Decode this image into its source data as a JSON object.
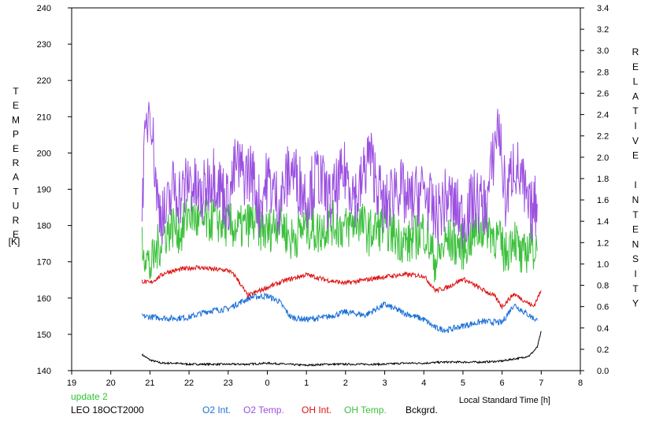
{
  "chart_data": {
    "type": "line",
    "xlabel": "Local Standard Time [h]",
    "ylabel_left": "TEMPERATURE",
    "ylabel_left_unit": "[K]",
    "ylabel_right": "RELATIVE INTENSITY",
    "x_ticks": [
      "19",
      "20",
      "21",
      "22",
      "23",
      "0",
      "1",
      "2",
      "3",
      "4",
      "5",
      "6",
      "7",
      "8"
    ],
    "xlim": [
      19,
      32
    ],
    "ylim_left": [
      140,
      240
    ],
    "y_ticks_left": [
      "140",
      "150",
      "160",
      "170",
      "180",
      "190",
      "200",
      "210",
      "220",
      "230",
      "240"
    ],
    "ylim_right": [
      0.0,
      3.4
    ],
    "y_ticks_right": [
      "0.0",
      "0.2",
      "0.4",
      "0.6",
      "0.8",
      "1.0",
      "1.2",
      "1.4",
      "1.6",
      "1.8",
      "2.0",
      "2.2",
      "2.4",
      "2.6",
      "2.8",
      "3.0",
      "3.2",
      "3.4"
    ],
    "grid": false,
    "series": [
      {
        "name": "O2 Int.",
        "axis": "right",
        "color": "#1a6fd8",
        "x": [
          20.8,
          21.5,
          22.0,
          22.5,
          23.0,
          23.3,
          23.6,
          24.0,
          24.3,
          24.6,
          25.0,
          25.5,
          26.0,
          26.5,
          27.0,
          27.5,
          28.0,
          28.3,
          28.6,
          29.0,
          29.5,
          30.0,
          30.3,
          30.6,
          30.9
        ],
        "y": [
          0.51,
          0.49,
          0.5,
          0.56,
          0.58,
          0.64,
          0.69,
          0.7,
          0.65,
          0.5,
          0.48,
          0.5,
          0.55,
          0.52,
          0.62,
          0.54,
          0.48,
          0.4,
          0.38,
          0.42,
          0.46,
          0.45,
          0.62,
          0.54,
          0.47
        ]
      },
      {
        "name": "O2 Temp.",
        "axis": "left",
        "color": "#9b4fe0",
        "x": [
          20.8,
          20.9,
          21.0,
          21.1,
          21.2,
          21.4,
          21.6,
          21.8,
          22.0,
          22.3,
          22.6,
          23.0,
          23.2,
          23.4,
          23.6,
          23.8,
          24.0,
          24.3,
          24.6,
          25.0,
          25.3,
          25.6,
          26.0,
          26.3,
          26.6,
          27.0,
          27.3,
          27.6,
          28.0,
          28.3,
          28.6,
          29.0,
          29.3,
          29.6,
          29.9,
          30.1,
          30.3,
          30.5,
          30.7,
          30.9
        ],
        "y": [
          189,
          205,
          216,
          200,
          186,
          182,
          191,
          188,
          193,
          187,
          195,
          186,
          197,
          194,
          195,
          185,
          193,
          186,
          196,
          188,
          194,
          186,
          195,
          187,
          200,
          184,
          192,
          186,
          190,
          182,
          188,
          182,
          187,
          185,
          209,
          186,
          198,
          192,
          183,
          186
        ]
      },
      {
        "name": "OH Int.",
        "axis": "right",
        "color": "#dd1010",
        "x": [
          20.8,
          21.0,
          21.4,
          21.8,
          22.2,
          22.6,
          23.0,
          23.2,
          23.5,
          23.8,
          24.0,
          24.5,
          25.0,
          25.5,
          26.0,
          26.5,
          27.0,
          27.5,
          28.0,
          28.3,
          28.6,
          29.0,
          29.4,
          29.8,
          30.0,
          30.3,
          30.6,
          30.8,
          31.0
        ],
        "y": [
          0.84,
          0.82,
          0.92,
          0.95,
          0.97,
          0.95,
          0.94,
          0.88,
          0.7,
          0.75,
          0.78,
          0.85,
          0.9,
          0.85,
          0.82,
          0.85,
          0.88,
          0.9,
          0.89,
          0.75,
          0.78,
          0.86,
          0.78,
          0.7,
          0.6,
          0.72,
          0.65,
          0.6,
          0.75
        ]
      },
      {
        "name": "OH Temp.",
        "axis": "left",
        "color": "#3cc03c",
        "x": [
          20.8,
          21.0,
          21.2,
          21.4,
          21.6,
          21.8,
          22.0,
          22.3,
          22.6,
          23.0,
          23.3,
          23.6,
          24.0,
          24.3,
          24.6,
          25.0,
          25.3,
          25.6,
          26.0,
          26.3,
          26.6,
          27.0,
          27.3,
          27.6,
          28.0,
          28.3,
          28.6,
          29.0,
          29.3,
          29.6,
          29.9,
          30.1,
          30.3,
          30.5,
          30.7,
          30.9
        ],
        "y": [
          176,
          168,
          174,
          178,
          180,
          178,
          184,
          180,
          182,
          180,
          179,
          181,
          178,
          182,
          176,
          180,
          178,
          181,
          179,
          182,
          178,
          180,
          177,
          175,
          179,
          170,
          176,
          174,
          178,
          180,
          176,
          172,
          178,
          170,
          175,
          173
        ]
      },
      {
        "name": "Bckgrd.",
        "axis": "right",
        "color": "#000000",
        "x": [
          20.8,
          21.0,
          21.3,
          21.6,
          22.0,
          22.5,
          23.0,
          23.5,
          24.0,
          24.5,
          25.0,
          25.5,
          26.0,
          26.5,
          27.0,
          27.5,
          28.0,
          28.5,
          29.0,
          29.5,
          30.0,
          30.3,
          30.5,
          30.7,
          30.9,
          31.0
        ],
        "y": [
          0.15,
          0.1,
          0.07,
          0.07,
          0.06,
          0.06,
          0.06,
          0.06,
          0.07,
          0.06,
          0.05,
          0.06,
          0.06,
          0.06,
          0.06,
          0.07,
          0.07,
          0.08,
          0.08,
          0.08,
          0.09,
          0.11,
          0.12,
          0.14,
          0.22,
          0.37
        ]
      }
    ]
  },
  "footer": {
    "update_label": "update 2",
    "station_date": "LEO 18OCT2000"
  }
}
